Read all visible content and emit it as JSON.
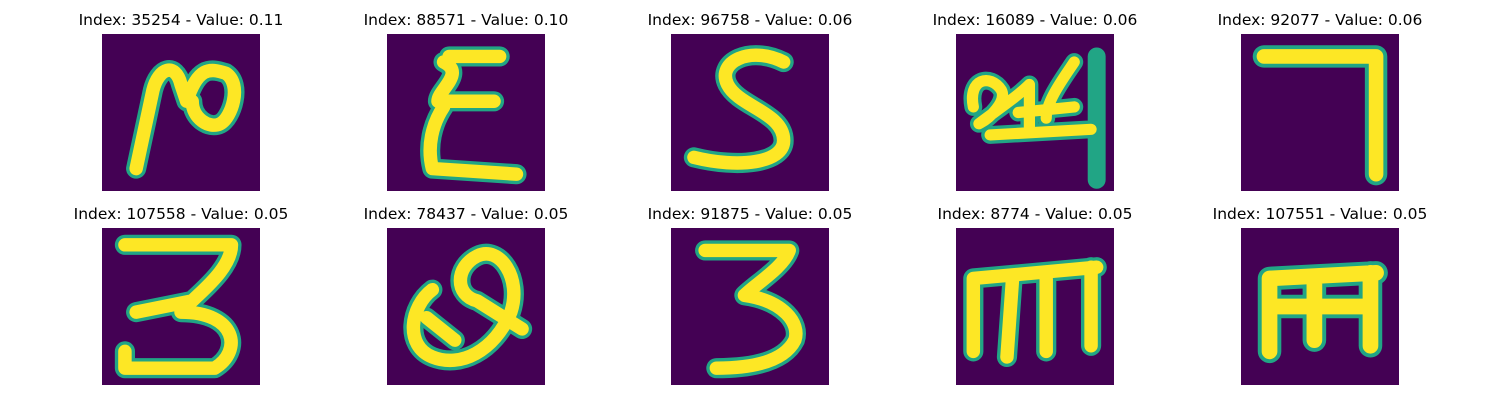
{
  "colors": {
    "background": "#440154",
    "stroke": "#fde725",
    "edge": "#21a585"
  },
  "panels": [
    {
      "title": "Index: 35254 - Value: 0.11",
      "glyph": "two-like"
    },
    {
      "title": "Index: 88571 - Value: 0.10",
      "glyph": "xi-like"
    },
    {
      "title": "Index: 96758 - Value: 0.06",
      "glyph": "s-like"
    },
    {
      "title": "Index: 16089 - Value: 0.06",
      "glyph": "24-like"
    },
    {
      "title": "Index: 92077 - Value: 0.06",
      "glyph": "seven-like"
    },
    {
      "title": "Index: 107558 - Value: 0.05",
      "glyph": "three-like"
    },
    {
      "title": "Index: 78437 - Value: 0.05",
      "glyph": "q-like"
    },
    {
      "title": "Index: 91875 - Value: 0.05",
      "glyph": "three-like-2"
    },
    {
      "title": "Index: 8774 - Value: 0.05",
      "glyph": "m-like"
    },
    {
      "title": "Index: 107551 - Value: 0.05",
      "glyph": "m-like-2"
    }
  ]
}
